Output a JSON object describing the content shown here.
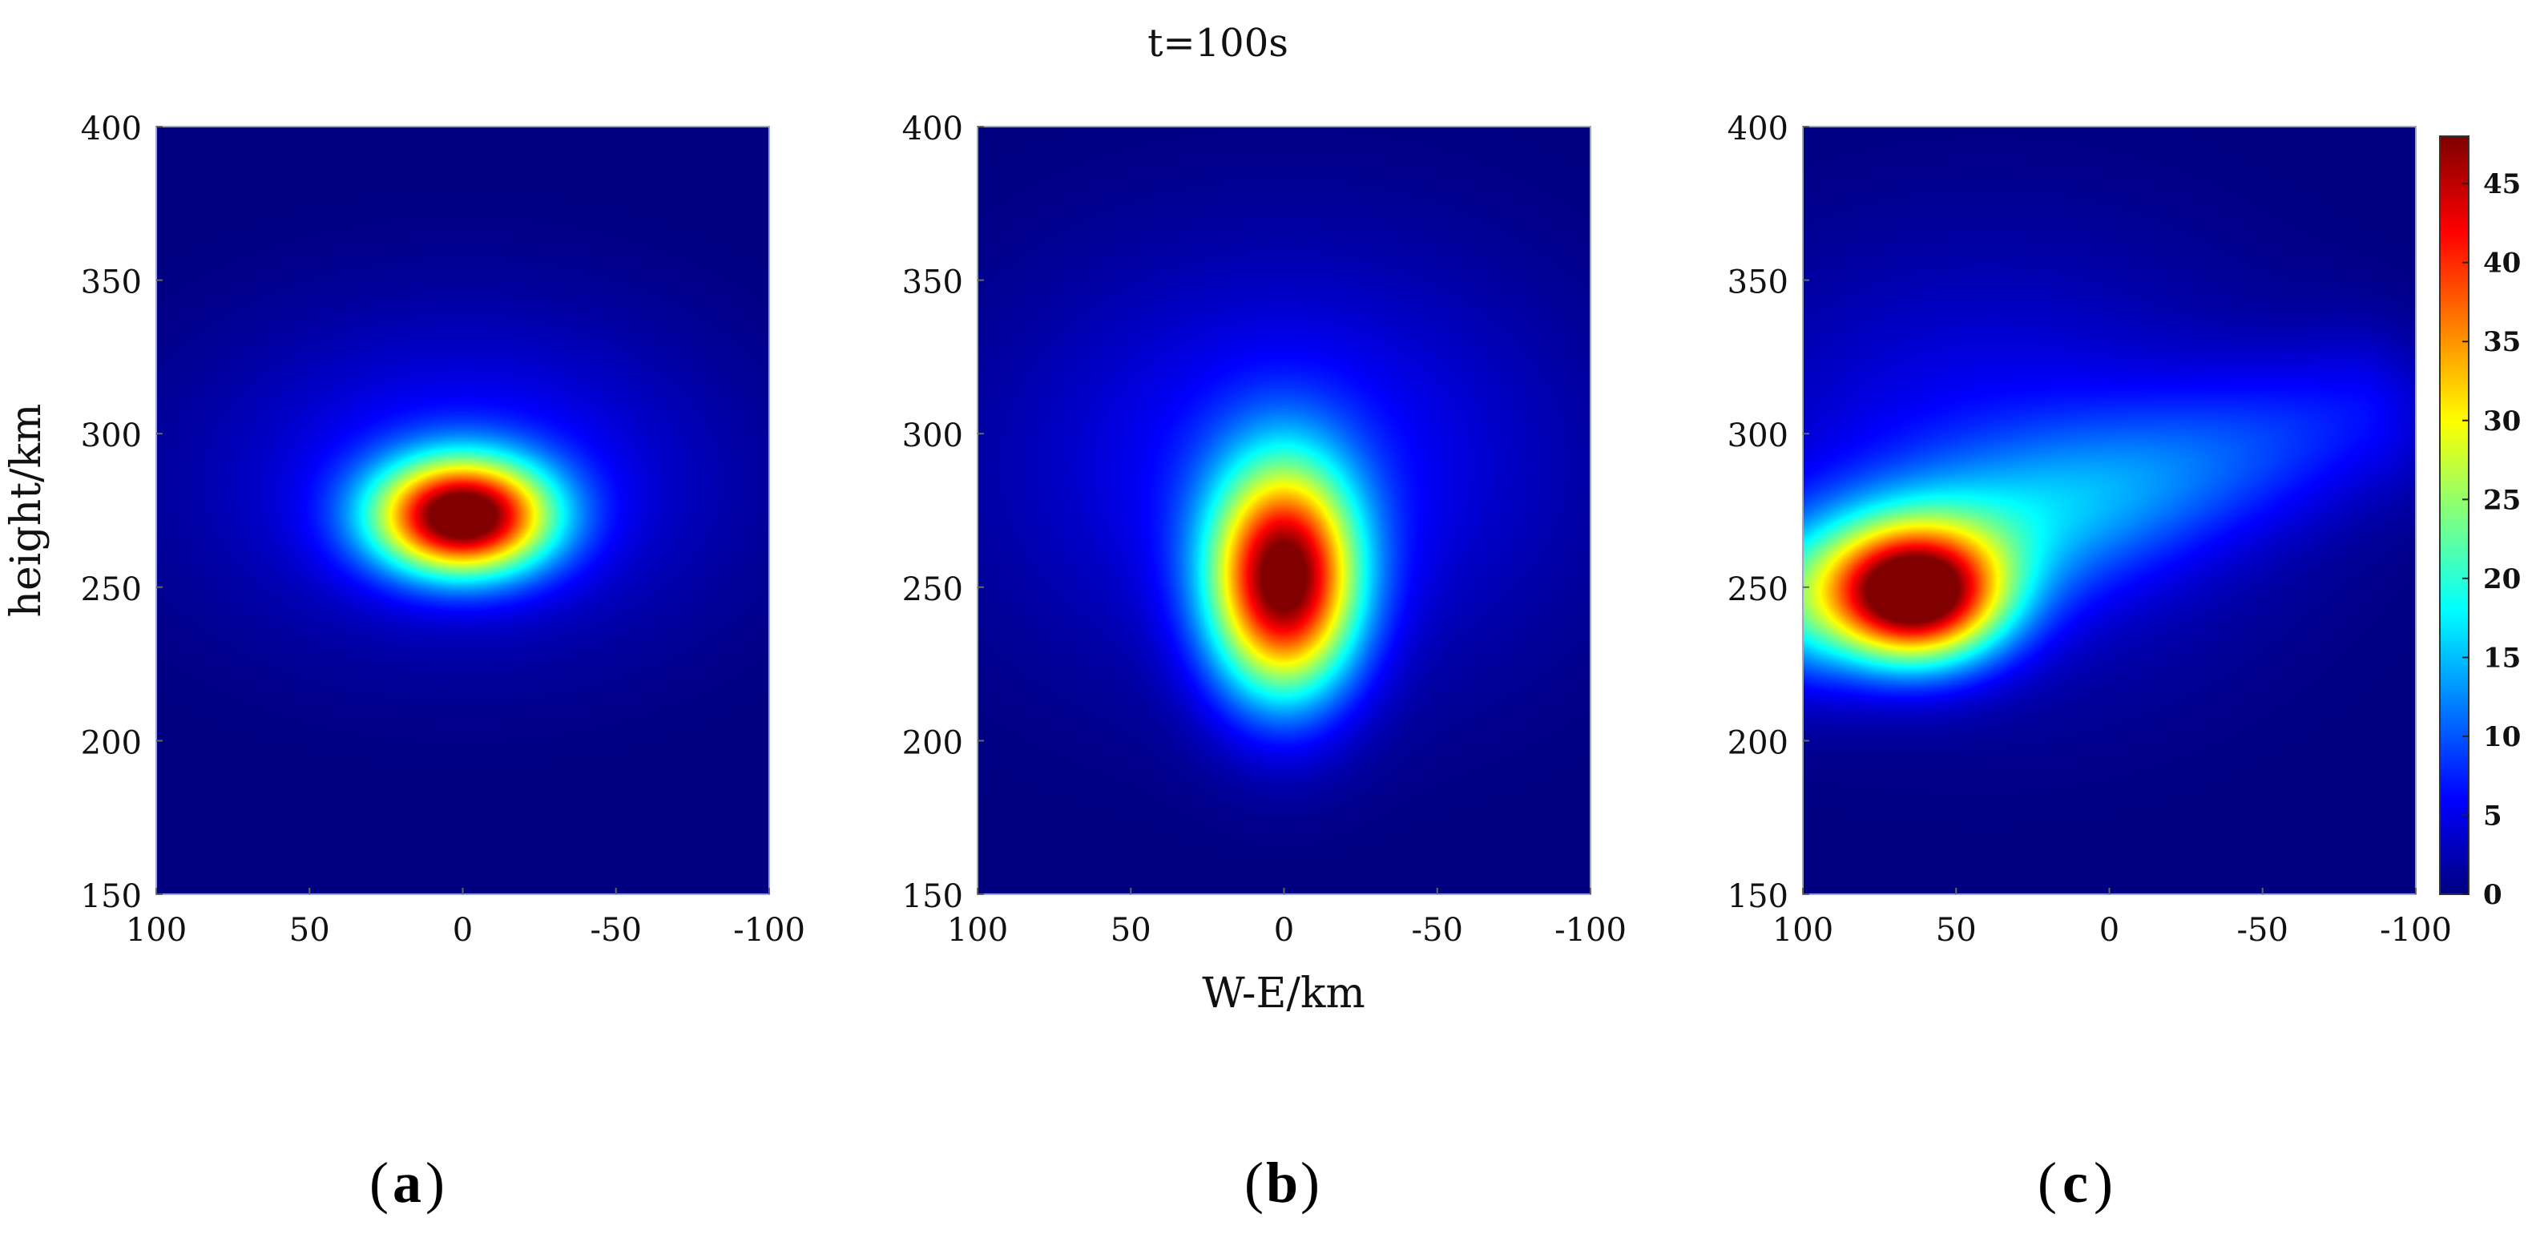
{
  "figure": {
    "title": "t=100s",
    "colors": {
      "colormap": "jet",
      "background": "#00008f"
    }
  },
  "chart_data": [
    {
      "type": "heatmap",
      "panel_label": "(a)",
      "panel_letter": "a",
      "xlabel": "",
      "ylabel": "height/km",
      "xlim": [
        100,
        -100
      ],
      "ylim": [
        150,
        400
      ],
      "x_ticks": [
        "100",
        "50",
        "0",
        "-50",
        "-100"
      ],
      "y_ticks": [
        "400",
        "350",
        "300",
        "250",
        "200",
        "150"
      ],
      "blobs": [
        {
          "x": 0,
          "y": 273,
          "sx": 20,
          "sy": 13,
          "amp": 48,
          "kind": "gauss"
        },
        {
          "x": 0,
          "y": 285,
          "sx": 55,
          "sy": 35,
          "amp": 7,
          "kind": "gauss"
        }
      ]
    },
    {
      "type": "heatmap",
      "panel_label": "(b)",
      "panel_letter": "b",
      "xlabel": "W-E/km",
      "ylabel": "",
      "xlim": [
        100,
        -100
      ],
      "ylim": [
        150,
        400
      ],
      "x_ticks": [
        "100",
        "50",
        "0",
        "-50",
        "-100"
      ],
      "y_ticks": [
        "400",
        "350",
        "300",
        "250",
        "200",
        "150"
      ],
      "blobs": [
        {
          "x": 0,
          "y": 252,
          "sx": 17,
          "sy": 26,
          "amp": 47,
          "kind": "gauss"
        },
        {
          "x": 0,
          "y": 290,
          "sx": 60,
          "sy": 45,
          "amp": 7,
          "kind": "gauss"
        }
      ]
    },
    {
      "type": "heatmap",
      "panel_label": "(c)",
      "panel_letter": "c",
      "xlabel": "",
      "ylabel": "",
      "xlim": [
        100,
        -100
      ],
      "ylim": [
        150,
        400
      ],
      "x_ticks": [
        "100",
        "50",
        "0",
        "-50",
        "-100"
      ],
      "y_ticks": [
        "400",
        "350",
        "300",
        "250",
        "200",
        "150"
      ],
      "blobs": [
        {
          "x": 63,
          "y": 247,
          "sx": 20,
          "sy": 15,
          "amp": 44,
          "kind": "gauss"
        },
        {
          "x": 100,
          "y": 248,
          "x2": -80,
          "y2": 305,
          "sd": 19,
          "amp": 15,
          "kind": "ridge"
        },
        {
          "x": 40,
          "y": 290,
          "sx": 60,
          "sy": 45,
          "amp": 6,
          "kind": "gauss"
        }
      ],
      "colorbar": {
        "label": "",
        "range": [
          0,
          48
        ],
        "ticks": [
          "0",
          "5",
          "10",
          "15",
          "20",
          "25",
          "30",
          "35",
          "40",
          "45"
        ]
      }
    }
  ]
}
